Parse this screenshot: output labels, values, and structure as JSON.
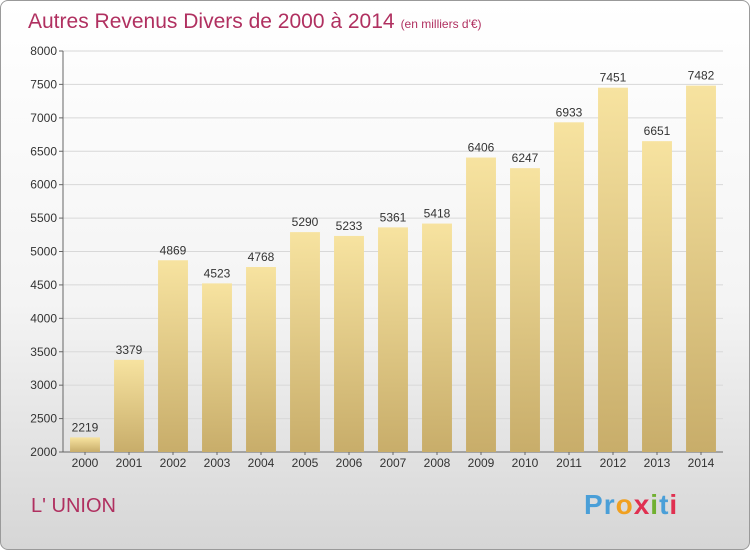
{
  "header": {
    "title": "Autres Revenus Divers de 2000 à 2014",
    "unit": "(en milliers d'€)"
  },
  "footer": {
    "place": "L' UNION",
    "brand_letters": [
      "P",
      "r",
      "o",
      "x",
      "i",
      "t",
      "i"
    ],
    "brand_colors": [
      "#4a9fd8",
      "#4a9fd8",
      "#f0a020",
      "#e03050",
      "#70b030",
      "#4a9fd8",
      "#e03050"
    ]
  },
  "chart_data": {
    "type": "bar",
    "categories": [
      "2000",
      "2001",
      "2002",
      "2003",
      "2004",
      "2005",
      "2006",
      "2007",
      "2008",
      "2009",
      "2010",
      "2011",
      "2012",
      "2013",
      "2014"
    ],
    "values": [
      2219,
      3379,
      4869,
      4523,
      4768,
      5290,
      5233,
      5361,
      5418,
      6406,
      6247,
      6933,
      7451,
      6651,
      7482
    ],
    "ylim": [
      2000,
      8000
    ],
    "yticks": [
      2000,
      2500,
      3000,
      3500,
      4000,
      4500,
      5000,
      5500,
      6000,
      6500,
      7000,
      7500,
      8000
    ],
    "grid": true,
    "bar_color_top": "#f7e3a0",
    "bar_color_bottom": "#c8ad6a"
  }
}
